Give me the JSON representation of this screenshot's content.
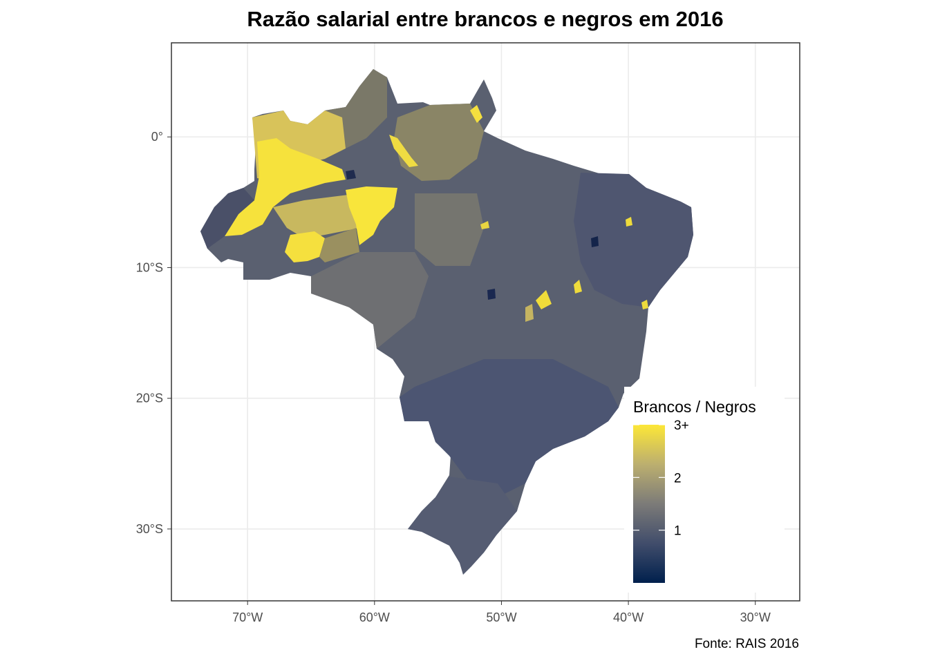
{
  "title": "Razão salarial entre brancos e negros em 2016",
  "caption": "Fonte: RAIS 2016",
  "map": {
    "type": "choropleth",
    "region": "Brasil (municípios)",
    "x_axis": {
      "ticks": [
        {
          "lon": -70,
          "label": "70°W"
        },
        {
          "lon": -60,
          "label": "60°W"
        },
        {
          "lon": -50,
          "label": "50°W"
        },
        {
          "lon": -40,
          "label": "40°W"
        },
        {
          "lon": -30,
          "label": "30°W"
        }
      ],
      "range": [
        -76,
        -26.5
      ]
    },
    "y_axis": {
      "ticks": [
        {
          "lat": 0,
          "label": "0°"
        },
        {
          "lat": -10,
          "label": "10°S"
        },
        {
          "lat": -20,
          "label": "20°S"
        },
        {
          "lat": -30,
          "label": "30°S"
        }
      ],
      "range": [
        -35.5,
        7.2
      ]
    },
    "grid": true,
    "legend": {
      "title": "Brancos / Negros",
      "placement": "bottom-right inside panel",
      "labels": [
        {
          "value": 3,
          "label": "3+"
        },
        {
          "value": 2,
          "label": "2"
        },
        {
          "value": 1,
          "label": "1"
        }
      ],
      "scale_min": 0,
      "scale_max": 3,
      "colors": [
        "#00204d",
        "#414d6b",
        "#7c7b78",
        "#bcaf6f",
        "#fde737"
      ]
    },
    "colors": {
      "panel_border": "#333333",
      "grid": "#ebebeb",
      "low": "#00204d",
      "mid": "#7c7b78",
      "high": "#fde737"
    }
  }
}
